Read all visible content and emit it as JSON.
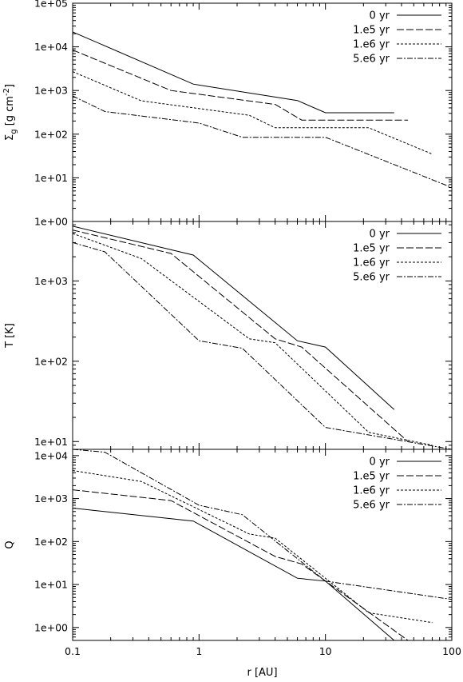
{
  "chart_data": [
    {
      "type": "line",
      "ylabel": "Σg [g cm-2]",
      "ylabel_parts": {
        "base": "Σ",
        "sub": "g",
        "units": " [g cm",
        "sup": "-2",
        "close": "]"
      },
      "xlabel": "",
      "xscale": "log",
      "yscale": "log",
      "xlim": [
        0.1,
        100
      ],
      "ylim": [
        1,
        100000
      ],
      "x_ticks": [
        0.1,
        1,
        10,
        100
      ],
      "y_ticks": [
        1,
        10,
        100,
        1000,
        10000,
        100000
      ],
      "y_tick_labels": [
        "1e+00",
        "1e+01",
        "1e+02",
        "1e+03",
        "1e+04",
        "1e+05"
      ],
      "legend_position": "top-right",
      "series": [
        {
          "name": "0 yr",
          "dash": "solid",
          "x": [
            0.1,
            0.9,
            6,
            10,
            35
          ],
          "y": [
            22000,
            1400,
            590,
            310,
            310
          ]
        },
        {
          "name": "1.e5 yr",
          "dash": "long-dash",
          "x": [
            0.1,
            0.6,
            4,
            6.5,
            45
          ],
          "y": [
            8500,
            1000,
            480,
            210,
            210
          ]
        },
        {
          "name": "1.e6 yr",
          "dash": "short-dash",
          "x": [
            0.1,
            0.35,
            2.5,
            4,
            22,
            70
          ],
          "y": [
            2700,
            580,
            270,
            140,
            140,
            35
          ]
        },
        {
          "name": "5.e6 yr",
          "dash": "dash-dot",
          "x": [
            0.1,
            0.18,
            1,
            2.2,
            10,
            100
          ],
          "y": [
            750,
            330,
            180,
            85,
            85,
            6
          ]
        }
      ]
    },
    {
      "type": "line",
      "ylabel": "T [K]",
      "xlabel": "",
      "xscale": "log",
      "yscale": "log",
      "xlim": [
        0.1,
        100
      ],
      "ylim": [
        8,
        5500
      ],
      "x_ticks": [
        0.1,
        1,
        10,
        100
      ],
      "y_ticks": [
        10,
        100,
        1000
      ],
      "y_tick_labels": [
        "1e+01",
        "1e+02",
        "1e+03"
      ],
      "legend_position": "top-right",
      "series": [
        {
          "name": "0 yr",
          "dash": "solid",
          "x": [
            0.1,
            0.9,
            6,
            10,
            35
          ],
          "y": [
            4800,
            2100,
            180,
            150,
            25
          ]
        },
        {
          "name": "1.e5 yr",
          "dash": "long-dash",
          "x": [
            0.1,
            0.6,
            4,
            6.5,
            45
          ],
          "y": [
            4300,
            2200,
            190,
            150,
            10
          ]
        },
        {
          "name": "1.e6 yr",
          "dash": "short-dash",
          "x": [
            0.1,
            0.35,
            2.5,
            4,
            22,
            70
          ],
          "y": [
            3900,
            1900,
            190,
            170,
            13,
            9
          ]
        },
        {
          "name": "5.e6 yr",
          "dash": "dash-dot",
          "x": [
            0.1,
            0.18,
            1,
            2.2,
            10,
            100
          ],
          "y": [
            3000,
            2300,
            180,
            145,
            15,
            8
          ]
        }
      ]
    },
    {
      "type": "line",
      "ylabel": "Q",
      "xlabel": "r [AU]",
      "xscale": "log",
      "yscale": "log",
      "xlim": [
        0.1,
        100
      ],
      "ylim": [
        0.5,
        14000
      ],
      "x_ticks": [
        0.1,
        1,
        10,
        100
      ],
      "x_tick_labels": [
        "0.1",
        "1",
        "10",
        "100"
      ],
      "y_ticks": [
        1,
        10,
        100,
        1000,
        10000
      ],
      "y_tick_labels": [
        "1e+00",
        "1e+01",
        "1e+02",
        "1e+03",
        "1e+04"
      ],
      "legend_position": "top-right",
      "series": [
        {
          "name": "0 yr",
          "dash": "solid",
          "x": [
            0.1,
            0.9,
            6,
            10,
            35
          ],
          "y": [
            600,
            300,
            14,
            12,
            0.5
          ]
        },
        {
          "name": "1.e5 yr",
          "dash": "long-dash",
          "x": [
            0.1,
            0.6,
            4,
            6.5,
            45
          ],
          "y": [
            1600,
            900,
            45,
            30,
            0.5
          ]
        },
        {
          "name": "1.e6 yr",
          "dash": "short-dash",
          "x": [
            0.1,
            0.35,
            2.5,
            4,
            22,
            70
          ],
          "y": [
            4500,
            2500,
            150,
            120,
            2.2,
            1.3
          ]
        },
        {
          "name": "5.e6 yr",
          "dash": "dash-dot",
          "x": [
            0.1,
            0.18,
            1,
            2.2,
            10,
            100
          ],
          "y": [
            14000,
            12000,
            700,
            420,
            12,
            4.5
          ]
        }
      ]
    }
  ]
}
